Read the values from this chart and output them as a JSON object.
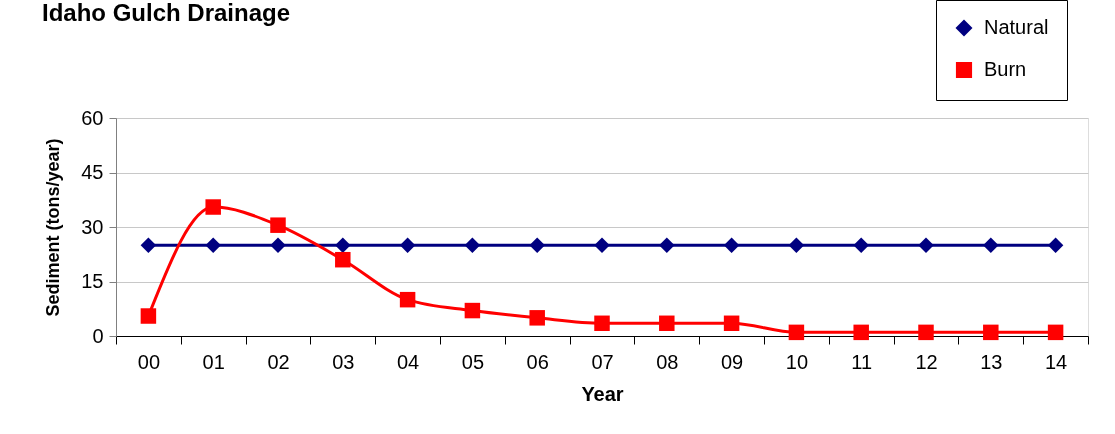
{
  "chart_data": {
    "type": "line",
    "title": "Idaho Gulch Drainage",
    "xlabel": "Year",
    "ylabel": "Sediment (tons/year)",
    "categories": [
      "00",
      "01",
      "02",
      "03",
      "04",
      "05",
      "06",
      "07",
      "08",
      "09",
      "10",
      "11",
      "12",
      "13",
      "14"
    ],
    "series": [
      {
        "name": "Natural",
        "color": "#000080",
        "marker": "diamond",
        "values": [
          25,
          25,
          25,
          25,
          25,
          25,
          25,
          25,
          25,
          25,
          25,
          25,
          25,
          25,
          25
        ]
      },
      {
        "name": "Burn",
        "color": "#ff0000",
        "marker": "square",
        "values": [
          5.5,
          35.5,
          30.5,
          21,
          10,
          7,
          5,
          3.5,
          3.5,
          3.5,
          1,
          1,
          1,
          1,
          1
        ]
      }
    ],
    "ylim": [
      0,
      60
    ],
    "yticks": [
      0,
      15,
      30,
      45,
      60
    ],
    "grid": "y",
    "legend": "top right"
  }
}
